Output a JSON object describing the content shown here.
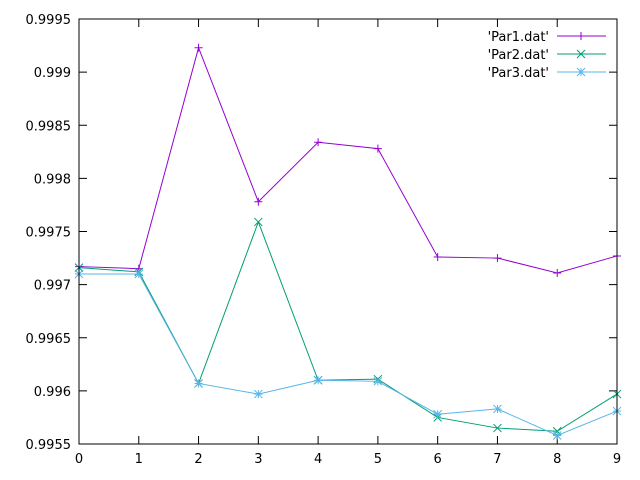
{
  "chart_data": {
    "type": "line",
    "x": [
      0,
      1,
      2,
      3,
      4,
      5,
      6,
      7,
      8,
      9
    ],
    "xlim": [
      0,
      9
    ],
    "ylim": [
      0.9955,
      0.9995
    ],
    "xticks": [
      "0",
      "1",
      "2",
      "3",
      "4",
      "5",
      "6",
      "7",
      "8",
      "9"
    ],
    "yticks": [
      "0.9955",
      "0.996",
      "0.9965",
      "0.997",
      "0.9975",
      "0.998",
      "0.9985",
      "0.999",
      "0.9995"
    ],
    "ytick_values": [
      0.9955,
      0.996,
      0.9965,
      0.997,
      0.9975,
      0.998,
      0.9985,
      0.999,
      0.9995
    ],
    "grid": false,
    "legend_position": "top-right",
    "series": [
      {
        "name": "'Par1.dat'",
        "color": "#9400d3",
        "marker": "plus",
        "values": [
          0.99717,
          0.99715,
          0.99923,
          0.99778,
          0.99834,
          0.99828,
          0.99726,
          0.99725,
          0.99711,
          0.99727
        ]
      },
      {
        "name": "'Par2.dat'",
        "color": "#009e73",
        "marker": "cross",
        "values": [
          0.99716,
          0.99712,
          0.99607,
          0.99759,
          0.9961,
          0.99611,
          0.99575,
          0.99565,
          0.99562,
          0.99597
        ]
      },
      {
        "name": "'Par3.dat'",
        "color": "#56b4e9",
        "marker": "star",
        "values": [
          0.9971,
          0.9971,
          0.99607,
          0.99597,
          0.9961,
          0.99609,
          0.99578,
          0.99583,
          0.99558,
          0.99581
        ]
      }
    ]
  }
}
